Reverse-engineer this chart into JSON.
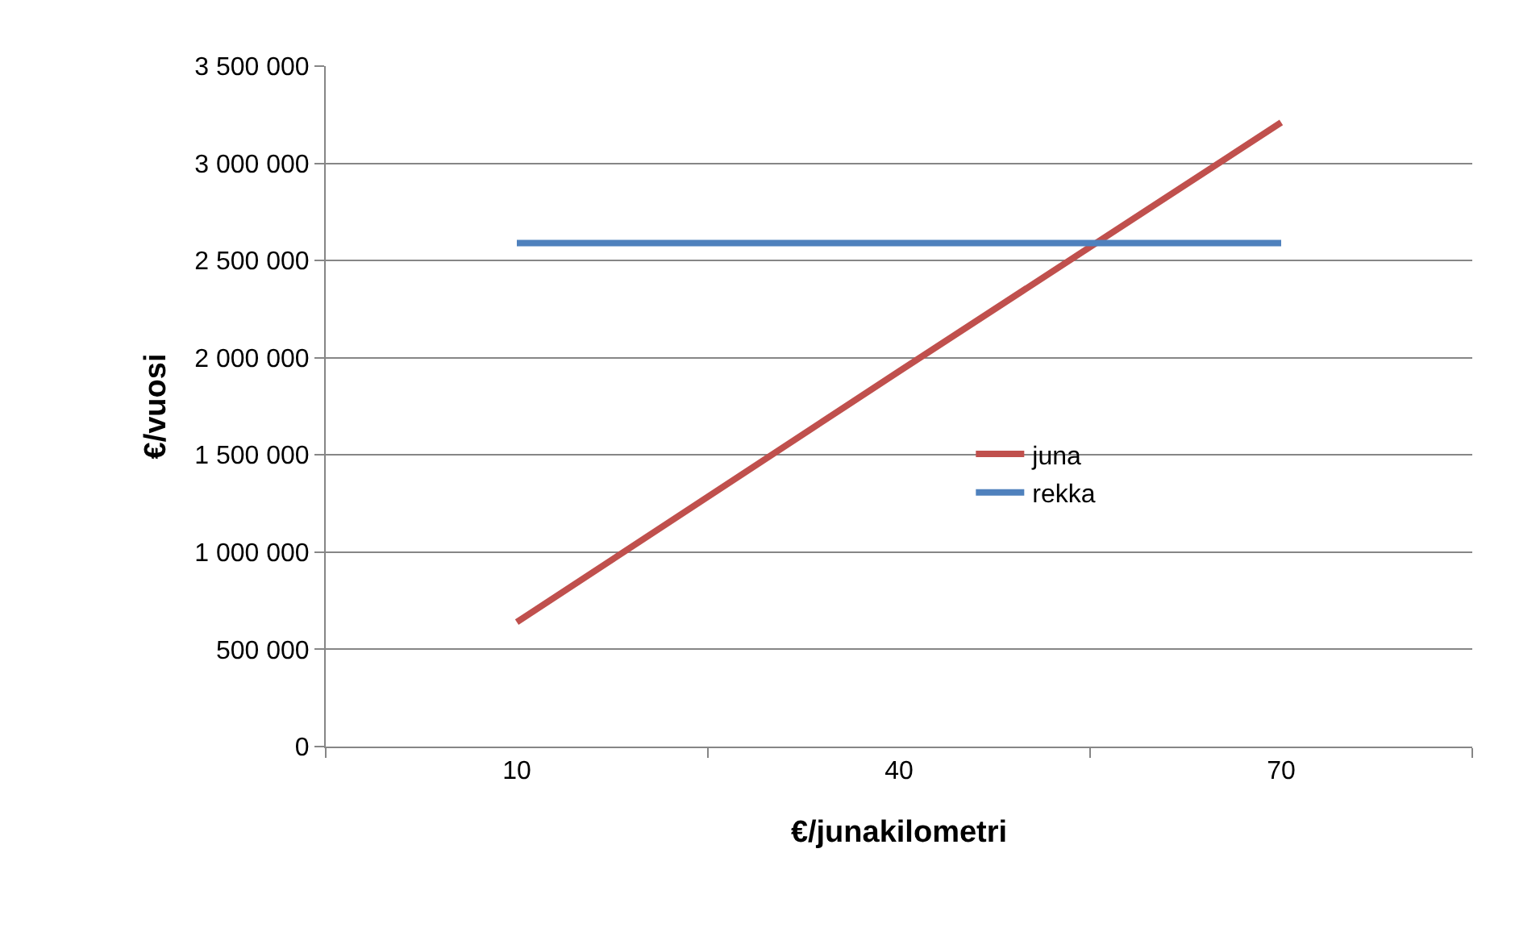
{
  "chart_data": {
    "type": "line",
    "xlabel": "€/junakilometri",
    "ylabel": "€/vuosi",
    "categories": [
      "10",
      "40",
      "70"
    ],
    "series": [
      {
        "name": "juna",
        "color": "#c0504d",
        "values": [
          640000,
          1930000,
          3210000
        ]
      },
      {
        "name": "rekka",
        "color": "#4f81bd",
        "values": [
          2590000,
          2590000,
          2590000
        ]
      }
    ],
    "ylim": [
      0,
      3500000
    ],
    "yticks": [
      0,
      {
        "value": 500000,
        "label": "500 000"
      },
      {
        "value": 1000000,
        "label": "1 000 000"
      },
      {
        "value": 1500000,
        "label": "1 500 000"
      },
      {
        "value": 2000000,
        "label": "2 000 000"
      },
      {
        "value": 2500000,
        "label": "2 500 000"
      },
      {
        "value": 3000000,
        "label": "3 000 000"
      },
      {
        "value": 3500000,
        "label": "3 500 000"
      }
    ],
    "grid": "y",
    "legend": "right",
    "marker": "none",
    "line_style": "solid"
  }
}
